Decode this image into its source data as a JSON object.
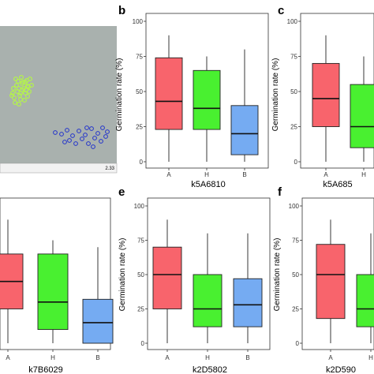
{
  "colors": {
    "A": "#f8646c",
    "H": "#49f030",
    "B": "#75abf2",
    "scatter_bg": "#a9b1ae",
    "green_point": "#b4f34c",
    "blue_point": "#2233cc"
  },
  "scatter_panel": {
    "corner_value": "2.33",
    "green_points": [
      [
        20,
        100
      ],
      [
        24,
        112
      ],
      [
        28,
        106
      ],
      [
        32,
        118
      ],
      [
        36,
        110
      ],
      [
        18,
        124
      ],
      [
        26,
        126
      ],
      [
        34,
        102
      ],
      [
        40,
        108
      ],
      [
        22,
        116
      ],
      [
        30,
        112
      ],
      [
        38,
        100
      ],
      [
        16,
        118
      ],
      [
        25,
        121
      ],
      [
        33,
        114
      ],
      [
        29,
        104
      ],
      [
        35,
        122
      ],
      [
        21,
        108
      ],
      [
        27,
        98
      ],
      [
        37,
        116
      ],
      [
        19,
        130
      ],
      [
        31,
        127
      ],
      [
        23,
        103
      ],
      [
        24,
        132
      ],
      [
        17,
        112
      ],
      [
        35,
        109
      ],
      [
        28,
        114
      ],
      [
        15,
        121
      ],
      [
        32,
        104
      ],
      [
        26,
        118
      ]
    ],
    "blue_points": [
      [
        70,
        168
      ],
      [
        78,
        170
      ],
      [
        85,
        165
      ],
      [
        92,
        172
      ],
      [
        100,
        166
      ],
      [
        108,
        171
      ],
      [
        116,
        163
      ],
      [
        124,
        169
      ],
      [
        130,
        162
      ],
      [
        136,
        167
      ],
      [
        88,
        178
      ],
      [
        96,
        182
      ],
      [
        104,
        176
      ],
      [
        112,
        182
      ],
      [
        120,
        175
      ],
      [
        128,
        179
      ],
      [
        134,
        173
      ],
      [
        110,
        162
      ],
      [
        82,
        180
      ],
      [
        118,
        186
      ]
    ]
  },
  "chart_data": [
    {
      "type": "box",
      "label": "b",
      "xlabel": "k5A6810",
      "ylabel": "Germination rate (%)",
      "yticks": [
        "0",
        "25",
        "50",
        "75",
        "100"
      ],
      "ylim": [
        0,
        100
      ],
      "categories": [
        "A",
        "H",
        "B"
      ],
      "boxes": [
        {
          "min": 0,
          "q1": 23,
          "median": 43,
          "q3": 74,
          "max": 90
        },
        {
          "min": 0,
          "q1": 23,
          "median": 38,
          "q3": 65,
          "max": 75
        },
        {
          "min": 0,
          "q1": 5,
          "median": 20,
          "q3": 40,
          "max": 80
        }
      ]
    },
    {
      "type": "box",
      "label": "c",
      "xlabel": "k5A685",
      "ylabel": "Germination rate (%)",
      "yticks": [
        "0",
        "25",
        "50",
        "75",
        "100"
      ],
      "ylim": [
        0,
        100
      ],
      "categories": [
        "A",
        "H"
      ],
      "boxes": [
        {
          "min": 0,
          "q1": 25,
          "median": 45,
          "q3": 70,
          "max": 90
        },
        {
          "min": 0,
          "q1": 10,
          "median": 25,
          "q3": 55,
          "max": 75
        }
      ]
    },
    {
      "type": "box",
      "label": "",
      "xlabel": "k7B6029",
      "ylabel": "",
      "yticks": [],
      "ylim": [
        0,
        100
      ],
      "categories": [
        "A",
        "H",
        "B"
      ],
      "boxes": [
        {
          "min": 0,
          "q1": 25,
          "median": 45,
          "q3": 65,
          "max": 90
        },
        {
          "min": 0,
          "q1": 10,
          "median": 30,
          "q3": 65,
          "max": 75
        },
        {
          "min": 0,
          "q1": 0,
          "median": 15,
          "q3": 32,
          "max": 70
        }
      ]
    },
    {
      "type": "box",
      "label": "e",
      "xlabel": "k2D5802",
      "ylabel": "Germination rate (%)",
      "yticks": [
        "0",
        "25",
        "50",
        "75",
        "100"
      ],
      "ylim": [
        0,
        100
      ],
      "categories": [
        "A",
        "H",
        "B"
      ],
      "boxes": [
        {
          "min": 0,
          "q1": 25,
          "median": 50,
          "q3": 70,
          "max": 90
        },
        {
          "min": 0,
          "q1": 12,
          "median": 25,
          "q3": 50,
          "max": 80
        },
        {
          "min": 0,
          "q1": 12,
          "median": 28,
          "q3": 47,
          "max": 80
        }
      ]
    },
    {
      "type": "box",
      "label": "f",
      "xlabel": "k2D590",
      "ylabel": "Germination rate (%)",
      "yticks": [
        "0",
        "25",
        "50",
        "75",
        "100"
      ],
      "ylim": [
        0,
        100
      ],
      "categories": [
        "A",
        "H"
      ],
      "boxes": [
        {
          "min": 0,
          "q1": 18,
          "median": 50,
          "q3": 72,
          "max": 90
        },
        {
          "min": 0,
          "q1": 12,
          "median": 25,
          "q3": 50,
          "max": 80
        }
      ]
    }
  ]
}
